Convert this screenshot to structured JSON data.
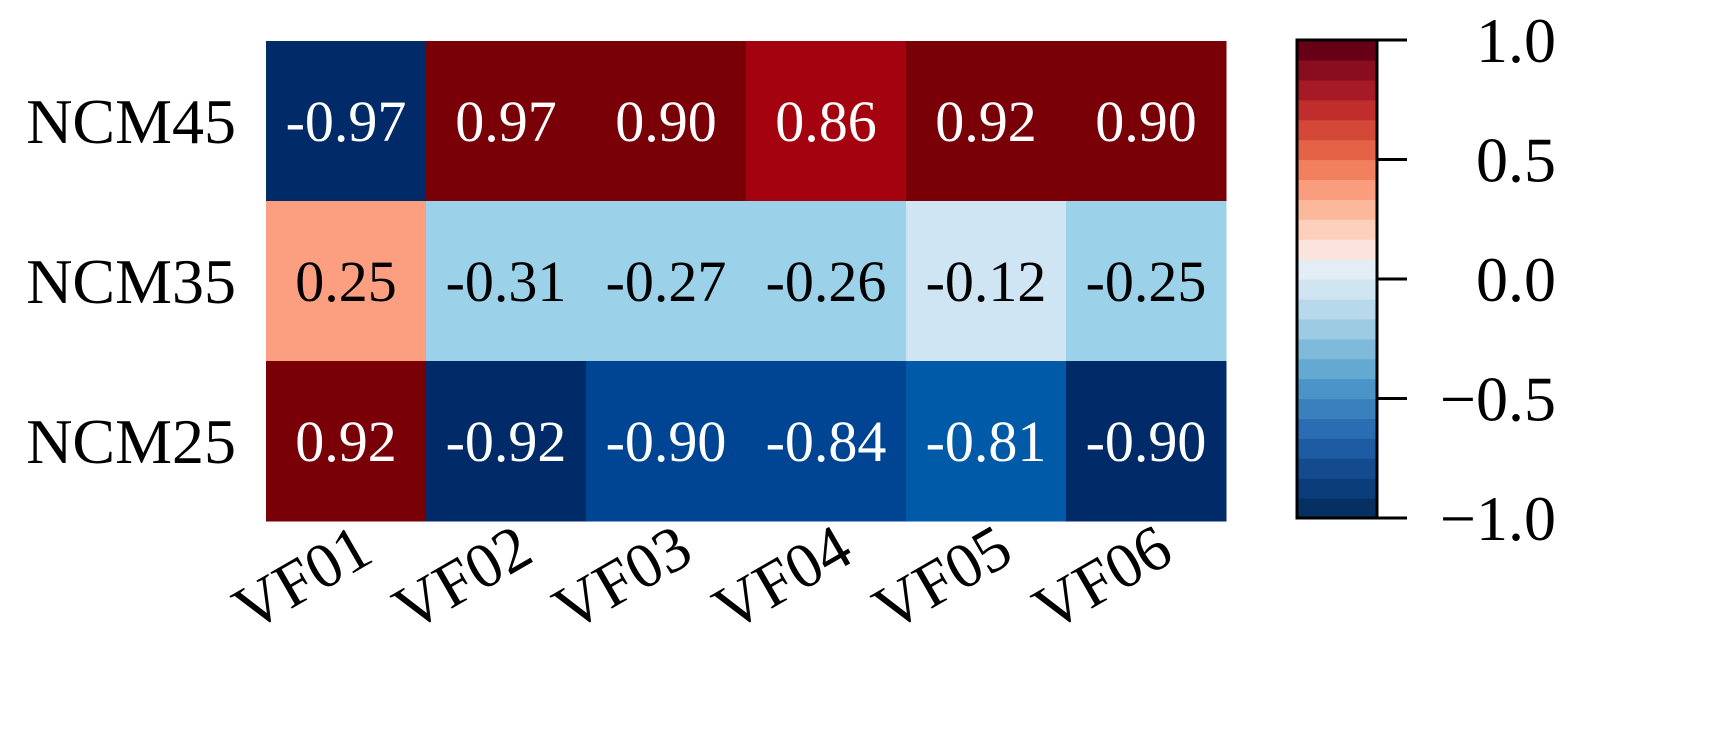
{
  "chart_data": {
    "type": "heatmap",
    "rows": [
      "NCM45",
      "NCM35",
      "NCM25"
    ],
    "columns": [
      "VF01",
      "VF02",
      "VF03",
      "VF04",
      "VF05",
      "VF06"
    ],
    "values": [
      [
        -0.97,
        0.97,
        0.9,
        0.86,
        0.92,
        0.9
      ],
      [
        0.25,
        -0.31,
        -0.27,
        -0.26,
        -0.12,
        -0.25
      ],
      [
        0.92,
        -0.92,
        -0.9,
        -0.84,
        -0.81,
        -0.9
      ]
    ],
    "value_labels": [
      [
        "-0.97",
        "0.97",
        "0.90",
        "0.86",
        "0.92",
        "0.90"
      ],
      [
        "0.25",
        "-0.31",
        "-0.27",
        "-0.26",
        "-0.12",
        "-0.25"
      ],
      [
        "0.92",
        "-0.92",
        "-0.90",
        "-0.84",
        "-0.81",
        "-0.90"
      ]
    ],
    "colorbar": {
      "range": [
        -1.0,
        1.0
      ],
      "ticks": [
        1.0,
        0.5,
        0.0,
        -0.5,
        -1.0
      ],
      "tick_labels": [
        "1.0",
        "0.5",
        "0.0",
        "−0.5",
        "−1.0"
      ],
      "colors": [
        "#053061",
        "#0a3d7a",
        "#134b8e",
        "#1d5ba3",
        "#2a6db3",
        "#3a80bd",
        "#4a94c8",
        "#63a9d2",
        "#7fbadb",
        "#9ccbe3",
        "#b7d9eb",
        "#cfe5f1",
        "#e2edf5",
        "#fbe4dc",
        "#fdd0bc",
        "#fcb89b",
        "#f99d7e",
        "#f2805f",
        "#e46347",
        "#d44838",
        "#bf2e2c",
        "#a51a24",
        "#8a0c1f",
        "#670016"
      ]
    },
    "cell_colors": [
      [
        "#002a68",
        "#7a0008",
        "#7a0008",
        "#a5020f",
        "#7a0008",
        "#7a0008"
      ],
      [
        "#fc9f80",
        "#9bd1e9",
        "#9bd1e9",
        "#9bd1e9",
        "#cfe5f4",
        "#9bd1e9"
      ],
      [
        "#7a0008",
        "#002a68",
        "#004594",
        "#004594",
        "#005aa8",
        "#002a68"
      ]
    ]
  }
}
